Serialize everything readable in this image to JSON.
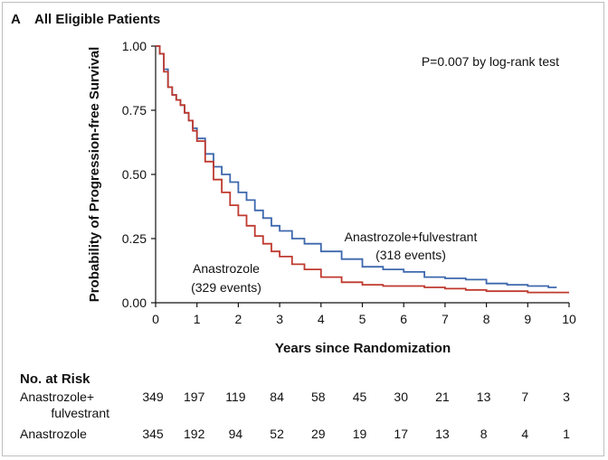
{
  "chart_data": {
    "type": "line",
    "panel_label": "A",
    "title": "All Eligible Patients",
    "xlabel": "Years since Randomization",
    "ylabel": "Probability of Progression-free Survival",
    "xlim": [
      0,
      10
    ],
    "ylim": [
      0,
      1
    ],
    "x_ticks": [
      0,
      1,
      2,
      3,
      4,
      5,
      6,
      7,
      8,
      9,
      10
    ],
    "y_ticks": [
      "0.00",
      "0.25",
      "0.50",
      "0.75",
      "1.00"
    ],
    "grid": false,
    "annotation": "P=0.007 by log-rank test",
    "series": [
      {
        "name": "Anastrozole+fulvestrant",
        "label_lines": [
          "Anastrozole+fulvestrant",
          "(318 events)"
        ],
        "color": "#3d68ad",
        "x": [
          0,
          0.1,
          0.2,
          0.3,
          0.4,
          0.5,
          0.6,
          0.7,
          0.8,
          0.9,
          1.0,
          1.2,
          1.4,
          1.6,
          1.8,
          2.0,
          2.2,
          2.4,
          2.6,
          2.8,
          3.0,
          3.3,
          3.6,
          4.0,
          4.5,
          5.0,
          5.5,
          6.0,
          6.5,
          7.0,
          7.5,
          8.0,
          8.5,
          9.0,
          9.5,
          9.7
        ],
        "y": [
          1.0,
          0.97,
          0.91,
          0.84,
          0.81,
          0.79,
          0.77,
          0.74,
          0.71,
          0.68,
          0.64,
          0.58,
          0.53,
          0.5,
          0.47,
          0.43,
          0.4,
          0.36,
          0.33,
          0.3,
          0.28,
          0.25,
          0.23,
          0.2,
          0.17,
          0.14,
          0.13,
          0.12,
          0.1,
          0.095,
          0.09,
          0.075,
          0.07,
          0.065,
          0.06,
          0.06
        ]
      },
      {
        "name": "Anastrozole",
        "label_lines": [
          "Anastrozole",
          "(329 events)"
        ],
        "color": "#bf3a2f",
        "x": [
          0,
          0.1,
          0.2,
          0.3,
          0.4,
          0.5,
          0.6,
          0.7,
          0.8,
          0.9,
          1.0,
          1.2,
          1.4,
          1.6,
          1.8,
          2.0,
          2.2,
          2.4,
          2.6,
          2.8,
          3.0,
          3.3,
          3.6,
          4.0,
          4.5,
          5.0,
          5.5,
          6.0,
          6.5,
          7.0,
          7.5,
          8.0,
          8.5,
          9.0,
          9.5,
          10.0
        ],
        "y": [
          1.0,
          0.97,
          0.9,
          0.84,
          0.81,
          0.79,
          0.77,
          0.74,
          0.71,
          0.67,
          0.63,
          0.55,
          0.48,
          0.43,
          0.38,
          0.34,
          0.3,
          0.26,
          0.23,
          0.2,
          0.18,
          0.15,
          0.13,
          0.1,
          0.08,
          0.07,
          0.065,
          0.065,
          0.06,
          0.055,
          0.05,
          0.045,
          0.045,
          0.04,
          0.04,
          0.04
        ]
      }
    ],
    "risk_table": {
      "title": "No. at Risk",
      "rows": [
        {
          "label_lines": [
            "Anastrozole+",
            "fulvestrant"
          ],
          "values": [
            349,
            197,
            119,
            84,
            58,
            45,
            30,
            21,
            13,
            7,
            3
          ]
        },
        {
          "label_lines": [
            "Anastrozole"
          ],
          "values": [
            345,
            192,
            94,
            52,
            29,
            19,
            17,
            13,
            8,
            4,
            1
          ]
        }
      ]
    }
  }
}
